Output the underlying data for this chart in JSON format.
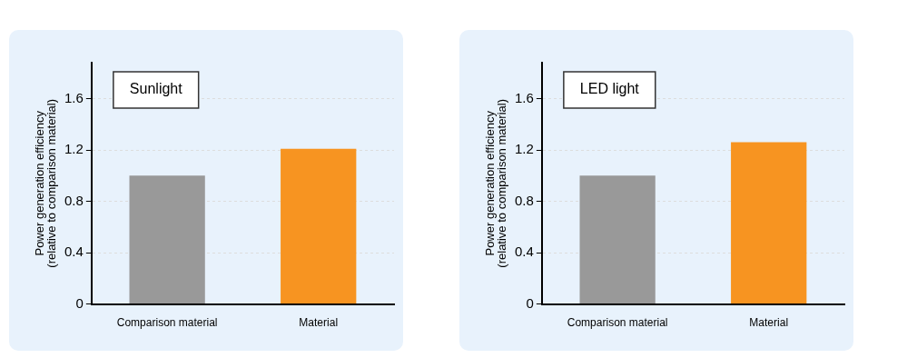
{
  "chart_data": [
    {
      "type": "bar",
      "title": "Sunlight",
      "ylabel": "Power generation efficiency\n(relative to comparison material)",
      "categories": [
        "Comparison material",
        "Material"
      ],
      "colors": [
        "#999999",
        "#f79421"
      ],
      "values": [
        1.0,
        1.21
      ],
      "ylim": [
        0,
        1.88
      ],
      "yticks": [
        0,
        0.4,
        0.8,
        1.2,
        1.6
      ],
      "grid": "y"
    },
    {
      "type": "bar",
      "title": "LED light",
      "ylabel": "Power generation efficiency\n(relative to comparison material)",
      "categories": [
        "Comparison material",
        "Material"
      ],
      "colors": [
        "#999999",
        "#f79421"
      ],
      "values": [
        1.0,
        1.26
      ],
      "ylim": [
        0,
        1.88
      ],
      "yticks": [
        0,
        0.4,
        0.8,
        1.2,
        1.6
      ],
      "grid": "y"
    }
  ]
}
